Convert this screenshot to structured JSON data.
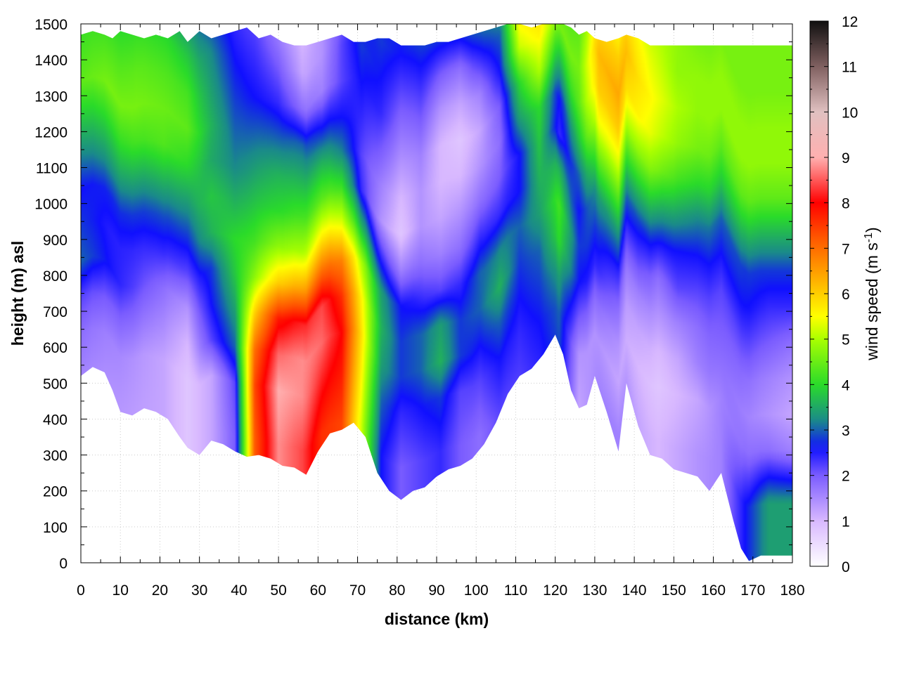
{
  "chart_data": {
    "type": "heatmap",
    "title": "",
    "xlabel": "distance (km)",
    "ylabel": "height (m) asl",
    "colorbar_label_main": "wind speed (m s",
    "colorbar_label_sup": "-1",
    "colorbar_label_end": ")",
    "xlim": [
      0,
      180
    ],
    "ylim": [
      0,
      1500
    ],
    "zlim": [
      0,
      12
    ],
    "x_ticks": [
      "0",
      "10",
      "20",
      "30",
      "40",
      "50",
      "60",
      "70",
      "80",
      "90",
      "100",
      "110",
      "120",
      "130",
      "140",
      "150",
      "160",
      "170",
      "180"
    ],
    "y_ticks": [
      "0",
      "100",
      "200",
      "300",
      "400",
      "500",
      "600",
      "700",
      "800",
      "900",
      "1000",
      "1100",
      "1200",
      "1300",
      "1400",
      "1500"
    ],
    "colorbar_ticks": [
      "0",
      "1",
      "2",
      "3",
      "4",
      "5",
      "6",
      "7",
      "8",
      "9",
      "10",
      "11",
      "12"
    ],
    "grid": true,
    "colorscale": [
      {
        "v": 0,
        "color": "#ffffff"
      },
      {
        "v": 1,
        "color": "#d8b8ff"
      },
      {
        "v": 2,
        "color": "#7a5cff"
      },
      {
        "v": 2.6,
        "color": "#1010ff"
      },
      {
        "v": 3.2,
        "color": "#1a8a8a"
      },
      {
        "v": 4,
        "color": "#2adb2a"
      },
      {
        "v": 5,
        "color": "#aaff00"
      },
      {
        "v": 5.5,
        "color": "#ffff00"
      },
      {
        "v": 6.3,
        "color": "#ffb000"
      },
      {
        "v": 7.3,
        "color": "#ff5000"
      },
      {
        "v": 8,
        "color": "#ff0000"
      },
      {
        "v": 9,
        "color": "#ffb0b0"
      },
      {
        "v": 10,
        "color": "#e0c0c0"
      },
      {
        "v": 11,
        "color": "#806060"
      },
      {
        "v": 12,
        "color": "#101010"
      }
    ],
    "terrain": {
      "x": [
        0,
        3,
        6,
        8,
        10,
        13,
        16,
        19,
        22,
        25,
        27,
        30,
        33,
        36,
        39,
        42,
        45,
        48,
        51,
        54,
        57,
        60,
        63,
        66,
        69,
        72,
        75,
        78,
        81,
        84,
        87,
        90,
        93,
        96,
        99,
        102,
        105,
        108,
        111,
        114,
        117,
        120,
        122,
        124,
        126,
        128,
        130,
        133,
        136,
        138,
        141,
        144,
        147,
        150,
        153,
        156,
        159,
        162,
        165,
        167,
        169,
        172,
        176,
        180
      ],
      "height_m": [
        520,
        545,
        530,
        480,
        420,
        410,
        430,
        420,
        400,
        350,
        320,
        300,
        340,
        330,
        310,
        295,
        300,
        290,
        270,
        265,
        245,
        310,
        360,
        370,
        390,
        350,
        250,
        200,
        175,
        200,
        210,
        240,
        260,
        270,
        290,
        330,
        390,
        470,
        520,
        540,
        580,
        635,
        580,
        480,
        430,
        440,
        520,
        420,
        310,
        500,
        380,
        300,
        290,
        260,
        250,
        240,
        200,
        250,
        120,
        40,
        5,
        20,
        20,
        20
      ]
    },
    "top_m": [
      1470,
      1480,
      1470,
      1460,
      1480,
      1470,
      1460,
      1470,
      1460,
      1480,
      1450,
      1480,
      1460,
      1470,
      1480,
      1490,
      1460,
      1470,
      1450,
      1440,
      1440,
      1450,
      1460,
      1470,
      1450,
      1450,
      1460,
      1460,
      1440,
      1440,
      1440,
      1450,
      1450,
      1460,
      1470,
      1480,
      1490,
      1500,
      1500,
      1490,
      1500,
      1500,
      1500,
      1490,
      1470,
      1480,
      1460,
      1450,
      1460,
      1470,
      1460,
      1440,
      1440,
      1440,
      1440,
      1440,
      1440,
      1440,
      1440,
      1440,
      1440,
      1440,
      1440,
      1440
    ],
    "profiles_km": [
      0,
      7,
      14,
      21,
      27,
      33,
      39,
      44,
      50,
      56,
      61,
      66,
      71,
      76,
      81,
      86,
      91,
      96,
      101,
      106,
      111,
      116,
      121,
      126,
      131,
      136,
      141,
      146,
      151,
      156,
      162,
      168,
      174,
      180
    ],
    "profile_heights_m": [
      0,
      150,
      300,
      400,
      500,
      600,
      700,
      800,
      900,
      1000,
      1100,
      1200,
      1300,
      1400,
      1500
    ],
    "wind_speed_ms": [
      [
        1.5,
        1.5,
        1.8,
        2.2,
        3.0,
        2.8,
        2.6,
        3.2,
        3.8,
        4.4,
        4.2,
        4.0,
        3.5,
        2.8,
        2.5
      ],
      [
        1.4,
        1.4,
        1.6,
        2.0,
        2.6,
        2.5,
        2.7,
        3.4,
        4.0,
        4.6,
        4.3,
        4.0,
        3.4,
        2.8,
        2.5
      ],
      [
        1.3,
        1.3,
        1.4,
        1.8,
        2.2,
        2.4,
        2.8,
        3.5,
        4.2,
        4.6,
        4.4,
        4.1,
        3.3,
        2.7,
        2.5
      ],
      [
        1.2,
        1.2,
        1.2,
        1.5,
        1.8,
        2.4,
        2.9,
        3.6,
        4.3,
        4.5,
        4.3,
        4.0,
        3.4,
        2.8,
        2.6
      ],
      [
        0.8,
        0.8,
        0.8,
        1.0,
        1.4,
        2.2,
        2.8,
        3.4,
        4.0,
        4.4,
        4.2,
        3.8,
        3.3,
        2.8,
        2.6
      ],
      [
        1.2,
        1.2,
        1.2,
        2.2,
        2.6,
        2.8,
        3.6,
        3.8,
        3.5,
        3.6,
        3.4,
        3.2,
        2.8,
        2.6,
        2.4
      ],
      [
        2.0,
        2.0,
        2.2,
        3.0,
        3.4,
        3.8,
        4.0,
        3.6,
        3.2,
        3.0,
        2.8,
        2.6,
        2.4,
        2.4,
        2.2
      ],
      [
        7.2,
        7.2,
        7.4,
        7.0,
        6.0,
        4.8,
        4.2,
        3.8,
        3.4,
        3.0,
        2.6,
        2.4,
        2.2,
        2.0,
        1.8
      ],
      [
        8.8,
        8.8,
        9.0,
        8.6,
        7.8,
        6.0,
        4.8,
        4.0,
        3.6,
        3.0,
        2.4,
        2.0,
        1.6,
        1.2,
        1.0
      ],
      [
        8.4,
        8.4,
        8.8,
        8.8,
        8.2,
        6.4,
        5.0,
        4.2,
        3.6,
        3.0,
        1.8,
        1.2,
        1.0,
        0.8,
        0.8
      ],
      [
        7.6,
        7.6,
        8.2,
        8.6,
        8.4,
        7.0,
        5.6,
        4.4,
        3.6,
        2.6,
        1.6,
        1.4,
        1.4,
        1.4,
        1.6
      ],
      [
        7.4,
        7.4,
        7.8,
        8.0,
        7.6,
        6.8,
        5.4,
        4.2,
        3.2,
        2.6,
        2.2,
        2.2,
        2.0,
        1.8,
        1.8
      ],
      [
        5.2,
        5.2,
        5.6,
        5.8,
        5.6,
        5.0,
        3.6,
        2.4,
        2.2,
        2.4,
        2.6,
        2.8,
        2.6,
        2.4,
        2.2
      ],
      [
        2.6,
        2.6,
        3.0,
        3.4,
        3.6,
        3.4,
        2.4,
        1.4,
        1.6,
        2.0,
        2.4,
        2.6,
        2.8,
        2.6,
        2.4
      ],
      [
        2.0,
        2.0,
        2.4,
        2.8,
        2.8,
        2.6,
        1.6,
        0.8,
        1.0,
        1.4,
        1.8,
        2.2,
        2.6,
        2.8,
        2.8
      ],
      [
        2.2,
        2.2,
        2.6,
        3.0,
        3.0,
        2.4,
        1.8,
        1.4,
        1.4,
        1.6,
        2.0,
        2.4,
        2.8,
        3.2,
        3.0
      ],
      [
        2.4,
        2.4,
        2.8,
        3.6,
        3.4,
        2.2,
        1.6,
        1.2,
        1.0,
        1.0,
        1.4,
        2.0,
        2.8,
        3.4,
        3.4
      ],
      [
        2.0,
        2.0,
        2.2,
        2.8,
        2.8,
        2.4,
        1.8,
        1.4,
        1.0,
        0.8,
        1.2,
        1.8,
        2.8,
        3.6,
        3.6
      ],
      [
        1.8,
        1.8,
        2.2,
        2.6,
        3.0,
        3.0,
        2.4,
        1.8,
        1.4,
        1.2,
        1.6,
        2.4,
        3.2,
        3.8,
        3.8
      ],
      [
        2.2,
        2.2,
        2.6,
        3.0,
        3.6,
        3.2,
        2.4,
        2.0,
        1.8,
        2.0,
        2.6,
        3.0,
        3.6,
        4.2,
        4.6
      ],
      [
        2.2,
        2.2,
        2.4,
        2.6,
        2.8,
        3.0,
        2.6,
        2.6,
        3.4,
        4.0,
        5.2,
        5.8,
        6.2,
        5.8,
        5.2
      ],
      [
        2.4,
        2.4,
        2.6,
        2.8,
        3.0,
        3.4,
        3.6,
        3.8,
        4.0,
        5.0,
        5.6,
        6.0,
        6.0,
        5.4,
        5.0
      ],
      [
        2.8,
        2.8,
        3.0,
        3.4,
        4.0,
        4.2,
        3.6,
        2.4,
        2.6,
        3.6,
        4.6,
        4.2,
        3.8,
        3.6,
        3.4
      ],
      [
        1.2,
        1.2,
        1.4,
        2.0,
        2.6,
        2.8,
        2.6,
        3.0,
        3.8,
        4.4,
        4.6,
        4.4,
        4.0,
        3.6,
        3.4
      ],
      [
        1.6,
        1.6,
        1.4,
        1.8,
        2.4,
        2.8,
        3.4,
        4.4,
        5.4,
        6.0,
        6.2,
        5.8,
        5.2,
        4.6,
        4.2
      ],
      [
        1.6,
        1.6,
        1.2,
        1.4,
        1.8,
        2.4,
        3.2,
        4.2,
        5.2,
        6.0,
        6.4,
        6.0,
        5.4,
        4.8,
        4.4
      ],
      [
        1.2,
        1.2,
        1.0,
        1.2,
        1.6,
        2.2,
        2.8,
        3.8,
        4.8,
        5.6,
        5.8,
        5.6,
        5.2,
        4.8,
        4.6
      ],
      [
        1.0,
        1.0,
        0.8,
        1.0,
        1.4,
        1.8,
        2.6,
        3.6,
        4.6,
        5.2,
        5.4,
        5.2,
        5.0,
        4.8,
        4.6
      ],
      [
        1.2,
        1.2,
        1.0,
        1.2,
        1.6,
        2.2,
        2.6,
        3.4,
        4.2,
        4.8,
        5.0,
        4.8,
        4.8,
        4.6,
        4.6
      ],
      [
        1.4,
        1.4,
        1.2,
        1.6,
        1.8,
        2.2,
        2.6,
        3.2,
        4.0,
        4.6,
        4.8,
        4.8,
        4.6,
        4.6,
        4.6
      ],
      [
        1.6,
        1.6,
        1.6,
        1.8,
        2.0,
        2.2,
        2.6,
        3.0,
        3.8,
        4.4,
        4.8,
        4.8,
        4.6,
        4.6,
        4.6
      ],
      [
        2.6,
        2.6,
        1.8,
        1.6,
        1.8,
        2.2,
        2.6,
        2.8,
        3.6,
        4.4,
        4.8,
        4.8,
        4.6,
        4.6,
        4.6
      ],
      [
        3.4,
        3.4,
        1.8,
        1.4,
        1.6,
        2.0,
        2.4,
        2.8,
        3.6,
        4.4,
        4.8,
        4.8,
        4.6,
        4.6,
        4.6
      ],
      [
        3.4,
        3.4,
        1.6,
        1.2,
        1.4,
        1.8,
        2.4,
        2.8,
        3.6,
        4.4,
        4.8,
        4.8,
        4.6,
        4.6,
        4.6
      ]
    ]
  }
}
